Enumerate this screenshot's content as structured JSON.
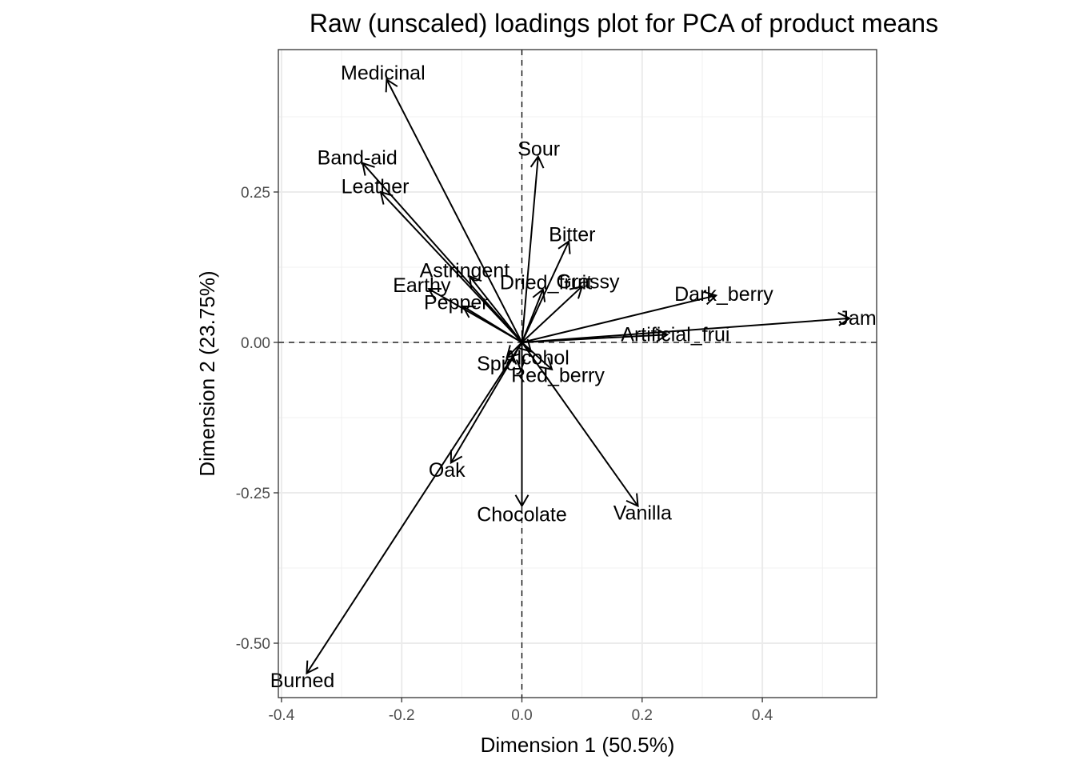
{
  "chart_data": {
    "type": "scatter",
    "title": "Raw (unscaled) loadings plot for PCA of product means",
    "xlabel": "Dimension 1 (50.5%)",
    "ylabel": "Dimension 2 (23.75%)",
    "xlim": [
      -0.405,
      0.59
    ],
    "ylim": [
      -0.59,
      0.485
    ],
    "x_ticks": [
      -0.4,
      -0.2,
      0.0,
      0.2,
      0.4
    ],
    "x_tick_labels": [
      "-0.4",
      "-0.2",
      "0.0",
      "0.2",
      "0.4"
    ],
    "y_ticks": [
      -0.5,
      -0.25,
      0.0,
      0.25
    ],
    "y_tick_labels": [
      "-0.50",
      "-0.25",
      "0.00",
      "0.25"
    ],
    "grid": true,
    "reference_lines": {
      "x": 0,
      "y": 0,
      "style": "dashed"
    },
    "vectors": [
      {
        "label": "Medicinal",
        "x": -0.225,
        "y": 0.437
      },
      {
        "label": "Band-aid",
        "x": -0.265,
        "y": 0.298
      },
      {
        "label": "Leather",
        "x": -0.235,
        "y": 0.25
      },
      {
        "label": "Sour",
        "x": 0.027,
        "y": 0.309
      },
      {
        "label": "Bitter",
        "x": 0.078,
        "y": 0.168
      },
      {
        "label": "Astringent",
        "x": -0.087,
        "y": 0.11
      },
      {
        "label": "Grassy",
        "x": 0.1,
        "y": 0.093
      },
      {
        "label": "Earthy",
        "x": -0.155,
        "y": 0.089
      },
      {
        "label": "Dried_fruit",
        "x": 0.035,
        "y": 0.088
      },
      {
        "label": "Dark_berry",
        "x": 0.323,
        "y": 0.078
      },
      {
        "label": "Pepper",
        "x": -0.098,
        "y": 0.06
      },
      {
        "label": "Jam",
        "x": 0.545,
        "y": 0.04
      },
      {
        "label": "Artificial_frui",
        "x": 0.242,
        "y": 0.013
      },
      {
        "label": "Spicy",
        "x": -0.025,
        "y": -0.025
      },
      {
        "label": "Red_berry",
        "x": 0.05,
        "y": -0.045
      },
      {
        "label": "Alcohol",
        "x": 0.015,
        "y": -0.015
      },
      {
        "label": "Oak",
        "x": -0.118,
        "y": -0.2
      },
      {
        "label": "Vanilla",
        "x": 0.193,
        "y": -0.272
      },
      {
        "label": "Chocolate",
        "x": 0.0,
        "y": -0.272
      },
      {
        "label": "Burned",
        "x": -0.358,
        "y": -0.55
      }
    ]
  }
}
